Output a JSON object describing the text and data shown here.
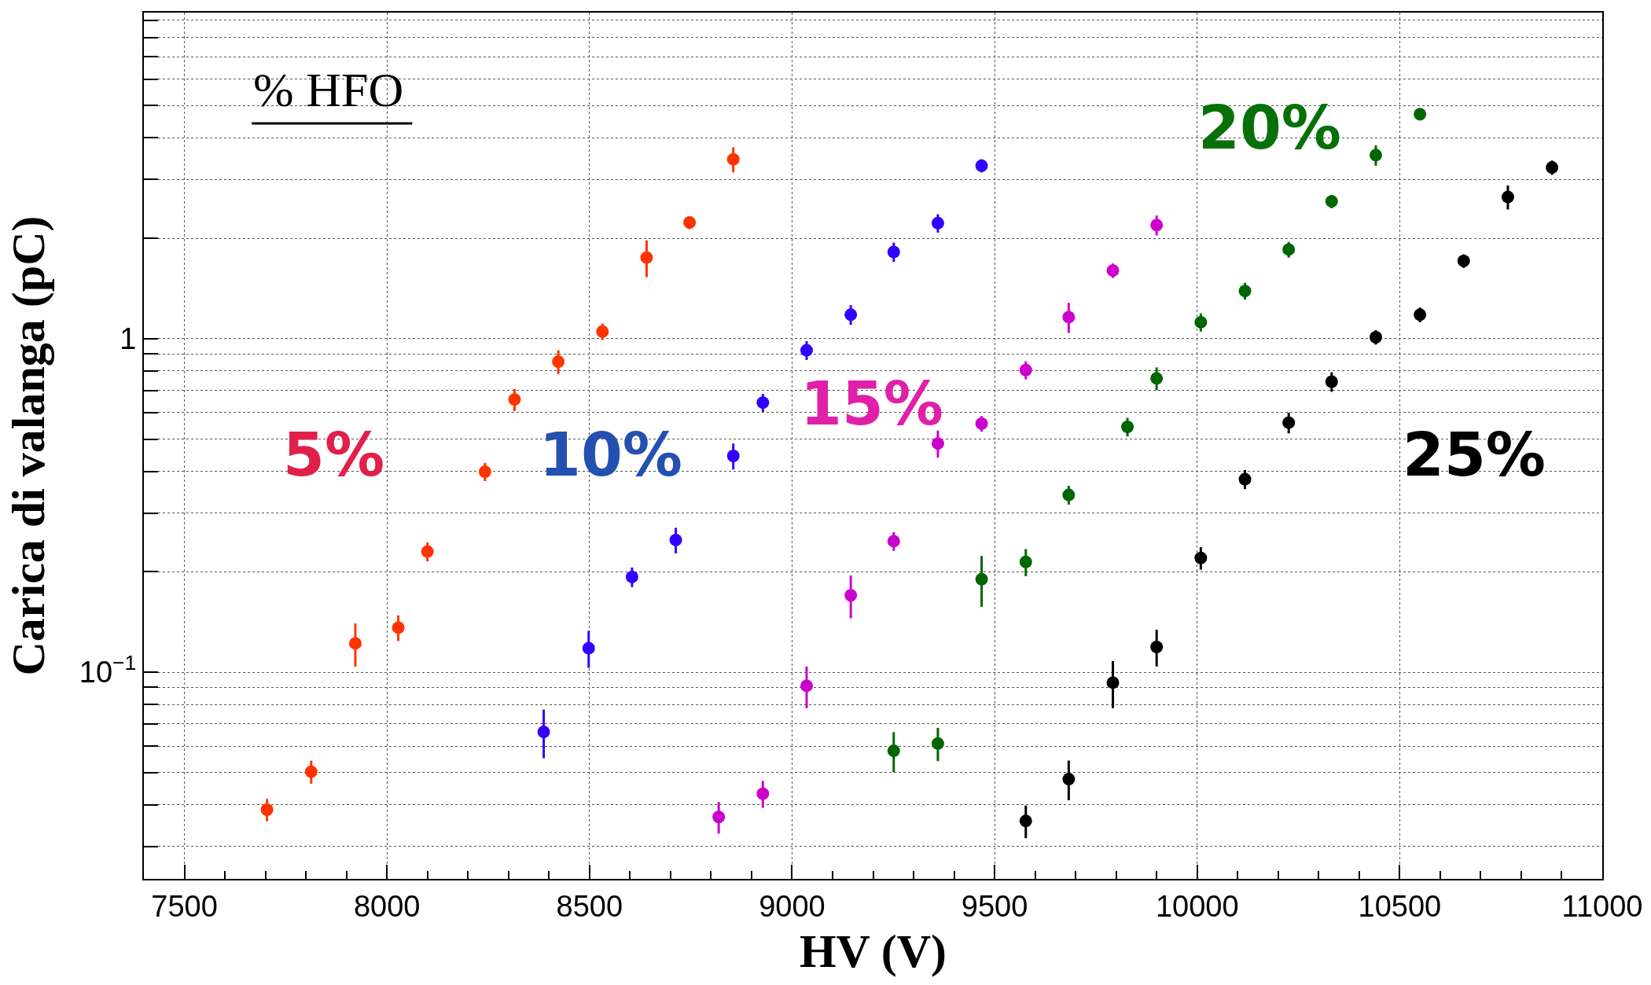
{
  "chart_data": {
    "type": "scatter",
    "xlabel": "HV (V)",
    "ylabel": "Carica di valanga (pC)",
    "log": "y",
    "grid": true,
    "marker": "circle",
    "xlim": [
      7400,
      11000
    ],
    "xticks": [
      7500,
      {
        "value": 7600,
        "label": null
      },
      {
        "value": 7700,
        "label": null
      },
      {
        "value": 7800,
        "label": null
      },
      {
        "value": 7900,
        "label": null
      },
      8000,
      {
        "value": 8100,
        "label": null
      },
      {
        "value": 8200,
        "label": null
      },
      {
        "value": 8300,
        "label": null
      },
      {
        "value": 8400,
        "label": null
      },
      8500,
      {
        "value": 8600,
        "label": null
      },
      {
        "value": 8700,
        "label": null
      },
      {
        "value": 8800,
        "label": null
      },
      {
        "value": 8900,
        "label": null
      },
      9000,
      {
        "value": 9100,
        "label": null
      },
      {
        "value": 9200,
        "label": null
      },
      {
        "value": 9300,
        "label": null
      },
      {
        "value": 9400,
        "label": null
      },
      9500,
      {
        "value": 9600,
        "label": null
      },
      {
        "value": 9700,
        "label": null
      },
      {
        "value": 9800,
        "label": null
      },
      {
        "value": 9900,
        "label": null
      },
      10000,
      {
        "value": 10100,
        "label": null
      },
      {
        "value": 10200,
        "label": null
      },
      {
        "value": 10300,
        "label": null
      },
      {
        "value": 10400,
        "label": null
      },
      10500,
      {
        "value": 10600,
        "label": null
      },
      {
        "value": 10700,
        "label": null
      },
      {
        "value": 10800,
        "label": null
      },
      {
        "value": 10900,
        "label": null
      },
      11000
    ],
    "ylim": [
      0.024,
      9.5
    ],
    "yticks": [
      {
        "value": 0.03,
        "label": null
      },
      {
        "value": 0.04,
        "label": null
      },
      {
        "value": 0.05,
        "label": null
      },
      {
        "value": 0.06,
        "label": null
      },
      {
        "value": 0.07,
        "label": null
      },
      {
        "value": 0.08,
        "label": null
      },
      {
        "value": 0.09,
        "label": null
      },
      {
        "value": 0.1,
        "label": "10$^{−1}$"
      },
      {
        "value": 0.2,
        "label": null
      },
      {
        "value": 0.3,
        "label": null
      },
      {
        "value": 0.4,
        "label": null
      },
      {
        "value": 0.5,
        "label": null
      },
      {
        "value": 0.6,
        "label": null
      },
      {
        "value": 0.7,
        "label": null
      },
      {
        "value": 0.8,
        "label": null
      },
      {
        "value": 0.9,
        "label": null
      },
      1,
      {
        "value": 2,
        "label": null
      },
      {
        "value": 3,
        "label": null
      },
      {
        "value": 4,
        "label": null
      },
      {
        "value": 5,
        "label": null
      },
      {
        "value": 6,
        "label": null
      },
      {
        "value": 7,
        "label": null
      },
      {
        "value": 8,
        "label": null
      },
      {
        "value": 9,
        "label": null
      }
    ],
    "series": [
      {
        "color": "#ff3300",
        "x": [
          7704,
          7813,
          7922,
          8028,
          8100,
          8242,
          8315,
          8423,
          8532,
          8641,
          8747,
          8855
        ],
        "values": [
          0.0387,
          0.0503,
          0.122,
          0.136,
          0.23,
          0.399,
          0.657,
          0.853,
          1.05,
          1.75,
          2.23,
          3.45
        ],
        "errors": [
          0.003,
          0.004,
          0.018,
          0.012,
          0.015,
          0.025,
          0.05,
          0.07,
          0.06,
          0.22,
          0.1,
          0.3
        ]
      },
      {
        "color": "#3300ff",
        "x": [
          8387,
          8498,
          8605,
          8713,
          8855,
          8928,
          9036,
          9145,
          9251,
          9360,
          9468
        ],
        "values": [
          0.0662,
          0.118,
          0.193,
          0.249,
          0.445,
          0.643,
          0.923,
          1.18,
          1.82,
          2.22,
          3.3
        ],
        "errors": [
          0.011,
          0.015,
          0.013,
          0.022,
          0.04,
          0.04,
          0.06,
          0.08,
          0.12,
          0.14,
          0.15
        ]
      },
      {
        "color": "#cc00cc",
        "x": [
          8819,
          8928,
          9036,
          9145,
          9251,
          9360,
          9468,
          9577,
          9683,
          9792,
          9900
        ],
        "values": [
          0.0368,
          0.0432,
          0.091,
          0.17,
          0.247,
          0.485,
          0.556,
          0.805,
          1.16,
          1.6,
          2.19
        ],
        "errors": [
          0.004,
          0.004,
          0.013,
          0.025,
          0.016,
          0.045,
          0.03,
          0.05,
          0.12,
          0.08,
          0.15
        ]
      },
      {
        "color": "#006600",
        "x": [
          9251,
          9360,
          9468,
          9577,
          9683,
          9828,
          9900,
          10009,
          10118,
          10226,
          10332,
          10441,
          10550
        ],
        "values": [
          0.0581,
          0.0611,
          0.19,
          0.214,
          0.34,
          0.544,
          0.76,
          1.12,
          1.39,
          1.85,
          2.58,
          3.55,
          4.71
        ],
        "errors": [
          0.008,
          0.007,
          0.033,
          0.02,
          0.022,
          0.035,
          0.06,
          0.07,
          0.08,
          0.1,
          0.12,
          0.25,
          0.2
        ]
      },
      {
        "color": "#000000",
        "x": [
          9577,
          9683,
          9792,
          9900,
          10009,
          10118,
          10226,
          10332,
          10441,
          10550,
          10658,
          10767,
          10876
        ],
        "values": [
          0.0358,
          0.0478,
          0.093,
          0.119,
          0.22,
          0.379,
          0.56,
          0.743,
          1.01,
          1.18,
          1.71,
          2.66,
          3.26
        ],
        "errors": [
          0.004,
          0.0065,
          0.015,
          0.015,
          0.017,
          0.025,
          0.04,
          0.05,
          0.05,
          0.06,
          0.08,
          0.22,
          0.16
        ]
      }
    ],
    "annotations": [
      "% HFO",
      "5%",
      "10%",
      "15%",
      "20%",
      "25%"
    ]
  }
}
